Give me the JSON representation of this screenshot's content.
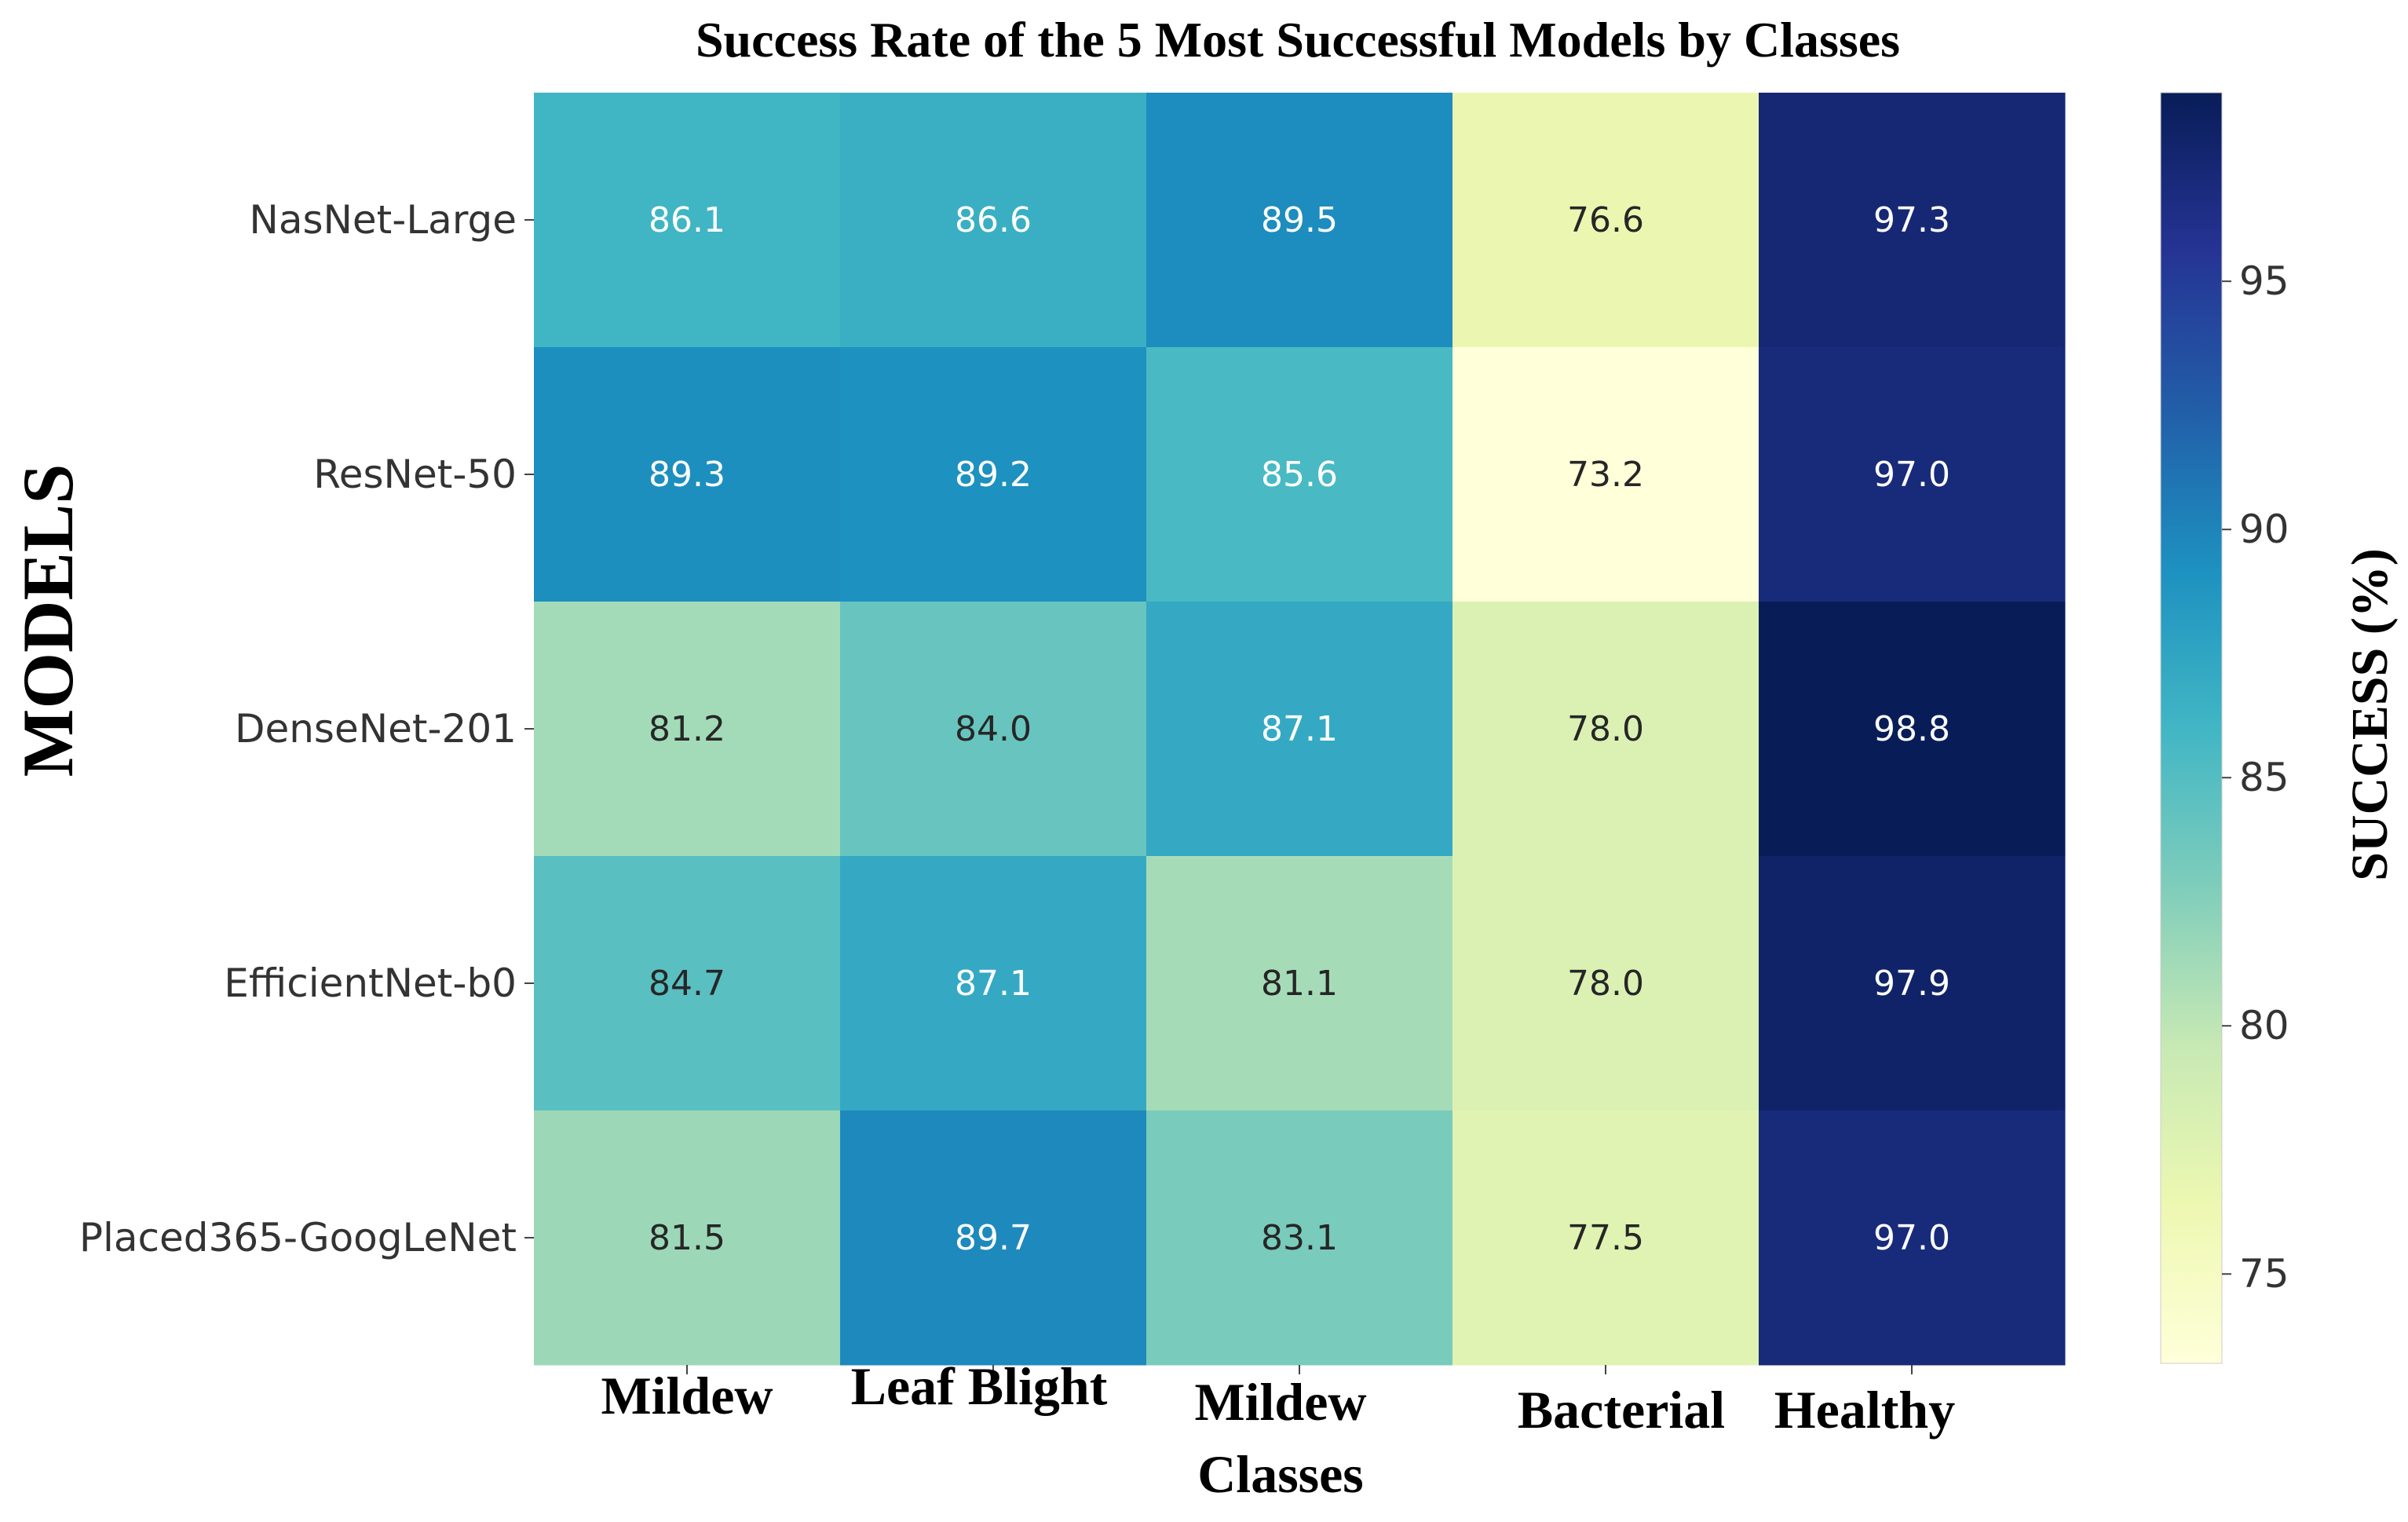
{
  "chart_data": {
    "type": "heatmap",
    "title": "Success Rate of the 5 Most Successful Models by Classes",
    "ylabel": "MODELS",
    "colorbar_label": "SUCCESS (%)",
    "rows": [
      "NasNet-Large",
      "ResNet-50",
      "DenseNet-201",
      "EfficientNet-b0",
      "Placed365-GoogLeNet"
    ],
    "columns": [
      {
        "lines": [
          "Mildew"
        ]
      },
      {
        "lines": [
          "Leaf Blight"
        ]
      },
      {
        "lines": [
          "Mildew",
          "Classes"
        ]
      },
      {
        "lines": [
          "Bacterial"
        ]
      },
      {
        "lines": [
          "Healthy"
        ]
      }
    ],
    "values": [
      [
        86.1,
        86.6,
        89.5,
        76.6,
        97.3
      ],
      [
        89.3,
        89.2,
        85.6,
        73.2,
        97.0
      ],
      [
        81.2,
        84.0,
        87.1,
        78.0,
        98.8
      ],
      [
        84.7,
        87.1,
        81.1,
        78.0,
        97.9
      ],
      [
        81.5,
        89.7,
        83.1,
        77.5,
        97.0
      ]
    ],
    "value_format": "0.1",
    "colormap": "YlGnBu",
    "vmin": 73.2,
    "vmax": 98.8,
    "colorbar_ticks": [
      75,
      80,
      85,
      90,
      95
    ]
  }
}
